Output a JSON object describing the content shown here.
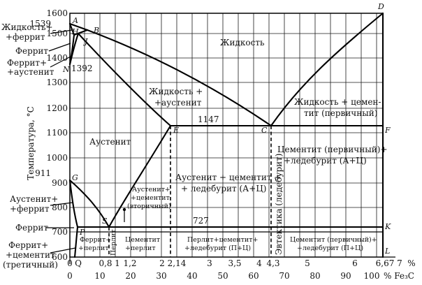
{
  "diagram": {
    "y_axis_label": "Температура, °С",
    "x_unit": "%",
    "x_unit2": "% Fe₃C",
    "x_ticks_carbon": [
      "0",
      "Q",
      "0,8",
      "1",
      "1,2",
      "2",
      "2,14",
      "3",
      "3,5",
      "4",
      "4,3",
      "5",
      "6",
      "6,67",
      "7"
    ],
    "x_ticks_fe3c": [
      "0",
      "10",
      "20",
      "30",
      "40",
      "50",
      "60",
      "70",
      "80",
      "90",
      "100"
    ],
    "y_ticks": [
      "1600",
      "1500",
      "1400",
      "1300",
      "1200",
      "1100",
      "1000",
      "900",
      "800",
      "700",
      "600"
    ],
    "special_temps": {
      "t1539": "1539",
      "t1392": "1392",
      "t1147": "1147",
      "t911": "911",
      "t727": "727"
    },
    "points": {
      "A": "A",
      "B": "B",
      "H": "H",
      "J": "J",
      "N": "N",
      "D": "D",
      "E": "E",
      "C": "C",
      "F": "F",
      "G": "G",
      "S": "S",
      "P": "P",
      "K": "K",
      "L": "L"
    },
    "regions": {
      "liquid": "Жидкость",
      "liquid_austenite_1": "Жидкость +",
      "liquid_austenite_2": "+аустенит",
      "liquid_cementite_1": "Жидкость + цемен-",
      "liquid_cementite_2": "тит (первичный)",
      "austenite": "Аустенит",
      "cem_ledeburite_1": "Цементит (первичный)+",
      "cem_ledeburite_2": "+ледебурит (А+Ц)",
      "aus_cem_led_1": "Аустенит + цементит +",
      "aus_cem_led_2": "+ ледебурит (А+Ц)",
      "aus_cem_sec_1": "Аустенит+",
      "aus_cem_sec_2": "+цементит",
      "aus_cem_sec_3": "(вторичный)",
      "perlite": "Перлит",
      "cem_perlite_1": "Цементит",
      "cem_perlite_2": "+перлит",
      "perl_cem_led_1": "Перлит+цементит+",
      "perl_cem_led_2": "+ледебурит (П+Ц)",
      "cem_led_pc_1": "Цементит (первичный)+",
      "cem_led_pc_2": "+ледебурит (П+Ц)",
      "ferrite_perlite_1": "Феррит+",
      "ferrite_perlite_2": "+перлит",
      "eutectic": "Эвтектика (ледебурит)"
    },
    "left_labels": {
      "liquid_ferrite_1": "Жидкость+",
      "liquid_ferrite_2": "+феррит",
      "ferrite_top": "Феррит",
      "ferrite_austenite_1": "Феррит+",
      "ferrite_austenite_2": "+аустенит",
      "austenite_ferrite_1": "Аустенит+",
      "austenite_ferrite_2": "+феррит",
      "ferrite_low": "Феррит",
      "ferrite_cem_1": "Феррит+",
      "ferrite_cem_2": "+цементит",
      "ferrite_cem_3": "(третичный)"
    }
  }
}
